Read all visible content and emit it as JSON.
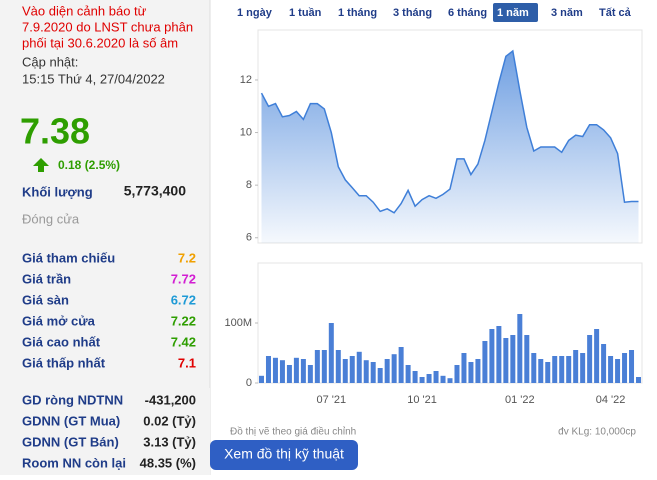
{
  "panel": {
    "warning": [
      "Vào diện cảnh báo từ",
      "7.9.2020 do LNST chưa phân",
      "phối tại 30.6.2020 là số âm"
    ],
    "updated_label": "Cập nhật:",
    "updated_time": "15:15 Thứ 4, 27/04/2022",
    "price": "7.38",
    "change": "0.18 (2.5%)",
    "volume_label": "Khối lượng",
    "volume": "5,773,400",
    "status": "Đóng cửa",
    "prices": [
      {
        "label": "Giá tham chiếu",
        "value": "7.2",
        "color": "#f0a000"
      },
      {
        "label": "Giá trần",
        "value": "7.72",
        "color": "#d21ed2"
      },
      {
        "label": "Giá sàn",
        "value": "6.72",
        "color": "#1d9ad6"
      },
      {
        "label": "Giá mở cửa",
        "value": "7.22",
        "color": "#2e9e00"
      },
      {
        "label": "Giá cao nhất",
        "value": "7.42",
        "color": "#2e9e00"
      },
      {
        "label": "Giá thấp nhất",
        "value": "7.1",
        "color": "#e00000"
      }
    ],
    "foreign": [
      {
        "label": "GD ròng NDTNN",
        "value": "-431,200"
      },
      {
        "label": "GDNN (GT Mua)",
        "value": "0.02 (Tỷ)"
      },
      {
        "label": "GDNN (GT Bán)",
        "value": "3.13 (Tỷ)"
      },
      {
        "label": "Room NN còn lại",
        "value": "48.35 (%)"
      }
    ]
  },
  "tabs": {
    "items": [
      "1 ngày",
      "1 tuần",
      "1 tháng",
      "3 tháng",
      "6 tháng",
      "1 năm",
      "3 năm",
      "Tất cả"
    ],
    "active": 5
  },
  "button": "Xem đồ thị kỹ thuật",
  "note": "Đồ thị vẽ theo giá điều chỉnh",
  "unit_note": "đv KLg: 10,000cp",
  "chart_data": [
    {
      "type": "area",
      "color": "#3f7fd8",
      "ylim": [
        5.8,
        13.9
      ],
      "yticks": [
        6,
        8,
        10,
        12
      ],
      "grid": false,
      "values": [
        11.5,
        11.0,
        11.1,
        10.6,
        10.65,
        10.8,
        10.5,
        11.1,
        11.1,
        10.9,
        10.0,
        8.7,
        8.2,
        7.9,
        7.6,
        7.6,
        7.35,
        7.0,
        7.1,
        6.95,
        7.3,
        7.8,
        7.2,
        7.45,
        7.6,
        7.5,
        7.65,
        7.85,
        9.0,
        9.0,
        8.4,
        8.8,
        9.7,
        10.8,
        11.9,
        12.9,
        13.1,
        11.6,
        10.2,
        9.3,
        9.45,
        9.45,
        9.45,
        9.25,
        9.7,
        9.9,
        9.85,
        10.3,
        10.3,
        10.1,
        9.8,
        9.2,
        7.35,
        7.38,
        7.38
      ]
    },
    {
      "type": "bar",
      "color": "#4a7fd6",
      "ylim": [
        0,
        200000000
      ],
      "yticks": [
        0,
        {
          "value": 100000000,
          "label": "100M"
        }
      ],
      "grid": false,
      "categories": [
        null,
        null,
        null,
        null,
        null,
        null,
        null,
        null,
        null,
        null,
        "07 '21",
        null,
        null,
        null,
        null,
        null,
        null,
        null,
        null,
        null,
        null,
        null,
        null,
        "10 '21",
        null,
        null,
        null,
        null,
        null,
        null,
        null,
        null,
        null,
        null,
        null,
        null,
        null,
        "01 '22",
        null,
        null,
        null,
        null,
        null,
        null,
        null,
        null,
        null,
        null,
        null,
        null,
        "04 '22",
        null,
        null,
        null,
        null
      ],
      "values": [
        12000000,
        45000000,
        42000000,
        38000000,
        30000000,
        42000000,
        40000000,
        30000000,
        55000000,
        55000000,
        100000000,
        55000000,
        40000000,
        45000000,
        52000000,
        38000000,
        35000000,
        25000000,
        40000000,
        48000000,
        60000000,
        30000000,
        20000000,
        10000000,
        15000000,
        20000000,
        12000000,
        8000000,
        30000000,
        50000000,
        35000000,
        40000000,
        70000000,
        90000000,
        95000000,
        75000000,
        80000000,
        115000000,
        80000000,
        50000000,
        40000000,
        35000000,
        45000000,
        45000000,
        45000000,
        55000000,
        50000000,
        80000000,
        90000000,
        65000000,
        45000000,
        40000000,
        50000000,
        55000000,
        10000000
      ]
    }
  ]
}
